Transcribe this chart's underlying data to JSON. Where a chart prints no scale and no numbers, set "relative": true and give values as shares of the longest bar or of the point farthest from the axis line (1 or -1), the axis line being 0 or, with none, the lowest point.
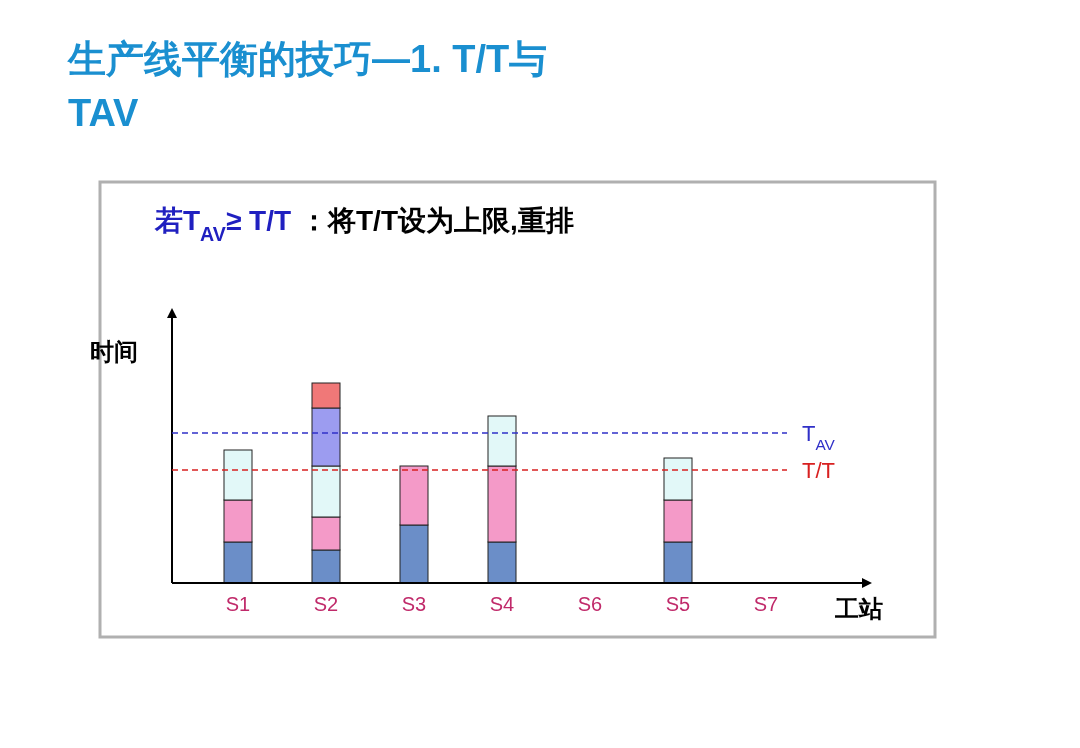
{
  "chart_data": {
    "type": "bar",
    "title": "生产线平衡的技巧—1. T/T与TAV",
    "annotations": [
      "若T$_{AV}$≥ T/T",
      "：将T/T设为上限,重排"
    ],
    "xlabel": "工站",
    "ylabel": "时间",
    "relative": true,
    "stacked": true,
    "categories": [
      "S1",
      "S2",
      "S3",
      "S4",
      "S6",
      "S5",
      "S7"
    ],
    "series": [
      {
        "color": "#6b8ec8",
        "values": [
          0.205,
          0.165,
          0.29,
          0.205,
          null,
          0.205,
          null
        ]
      },
      {
        "color": "#f49ac8",
        "values": [
          0.21,
          0.165,
          0.295,
          0.38,
          null,
          0.21,
          null
        ]
      },
      {
        "color": "#e2f8f8",
        "values": [
          0.25,
          0.255,
          null,
          0.25,
          null,
          0.21,
          null
        ]
      },
      {
        "color": "#9c9cf0",
        "values": [
          null,
          0.29,
          null,
          null,
          null,
          null,
          null
        ]
      },
      {
        "color": "#f07878",
        "values": [
          null,
          0.125,
          null,
          null,
          null,
          null,
          null
        ]
      }
    ],
    "ref_lines": [
      {
        "axis": "y",
        "value": 0.75,
        "label": "T$_{AV}$",
        "color": "#3030c8",
        "line_style": "dashed"
      },
      {
        "axis": "y",
        "value": 0.565,
        "label": "T/T",
        "color": "#d82020",
        "line_style": "dashed"
      }
    ]
  }
}
